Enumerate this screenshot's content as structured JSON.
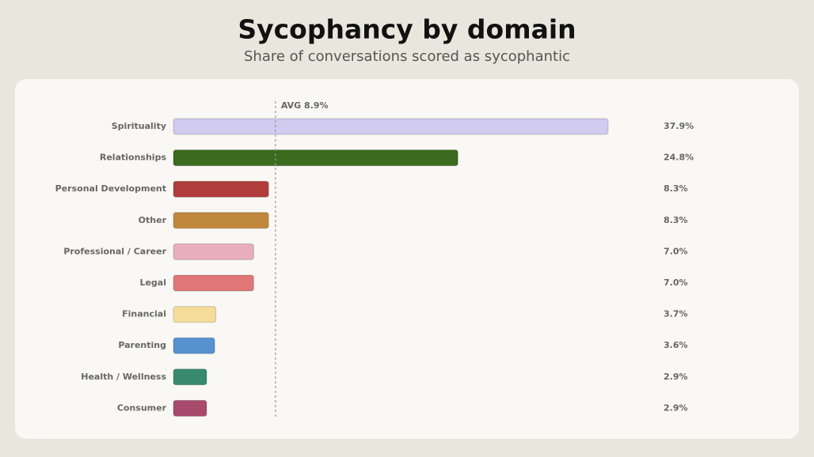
{
  "chart_data": {
    "type": "hbar",
    "title": "Sycophancy by domain",
    "subtitle": "Share of conversations scored as sycophantic",
    "categories": [
      "Spirituality",
      "Relationships",
      "Personal Development",
      "Other",
      "Professional / Career",
      "Legal",
      "Financial",
      "Parenting",
      "Health / Wellness",
      "Consumer"
    ],
    "values": [
      37.9,
      24.8,
      8.3,
      8.3,
      7.0,
      7.0,
      3.7,
      3.6,
      2.9,
      2.9
    ],
    "value_labels": [
      "37.9%",
      "24.8%",
      "8.3%",
      "8.3%",
      "7.0%",
      "7.0%",
      "3.7%",
      "3.6%",
      "2.9%",
      "2.9%"
    ],
    "colors": [
      "#d1cbf0",
      "#3a6b1e",
      "#b13c3c",
      "#c0883a",
      "#e8aec0",
      "#e07676",
      "#f5dc9a",
      "#5592cf",
      "#378a6e",
      "#a84a6c"
    ],
    "reference_line": {
      "value": 8.9,
      "label": "AVG 8.9%"
    }
  }
}
